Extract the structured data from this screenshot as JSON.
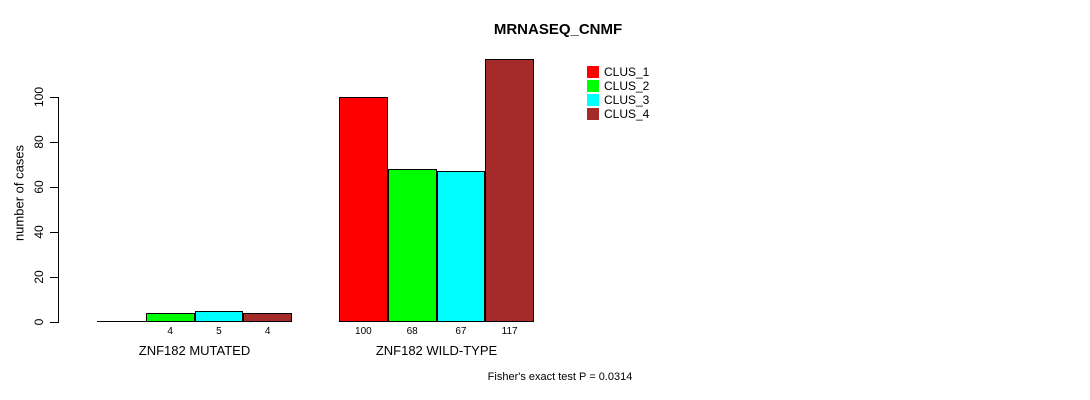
{
  "figure": {
    "background": "#ffffff",
    "text_color": "#000000"
  },
  "chart_data": {
    "type": "bar",
    "title": "MRNASEQ_CNMF",
    "ylabel": "number of cases",
    "xlabel": "",
    "categories": [
      "ZNF182 MUTATED",
      "ZNF182 WILD-TYPE"
    ],
    "series": [
      {
        "name": "CLUS_1",
        "color": "#ff0000",
        "values": [
          0,
          100
        ]
      },
      {
        "name": "CLUS_2",
        "color": "#00ff00",
        "values": [
          4,
          68
        ]
      },
      {
        "name": "CLUS_3",
        "color": "#00ffff",
        "values": [
          5,
          67
        ]
      },
      {
        "name": "CLUS_4",
        "color": "#a52a2a",
        "values": [
          4,
          117
        ]
      }
    ],
    "bar_value_labels": [
      [
        "",
        "4",
        "5",
        "4"
      ],
      [
        "100",
        "68",
        "67",
        "117"
      ]
    ],
    "yticks": [
      0,
      20,
      40,
      60,
      80,
      100
    ],
    "ylim": [
      0,
      117
    ],
    "grid": false,
    "legend_position": "inside-top-right",
    "legend_entries": [
      "CLUS_1",
      "CLUS_2",
      "CLUS_3",
      "CLUS_4"
    ],
    "annotation": "Fisher's exact test P = 0.0314"
  }
}
